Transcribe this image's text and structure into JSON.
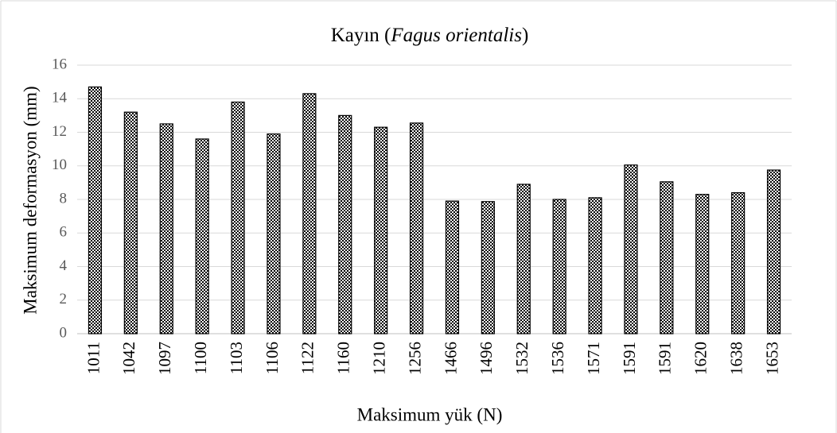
{
  "chart_data": {
    "type": "bar",
    "title": [
      "Kayın (",
      "Fagus orientalis",
      ")"
    ],
    "x_label": "Maksimum yük (N)",
    "y_label": "Maksimum deformasyon (mm)",
    "categories": [
      "1011",
      "1042",
      "1097",
      "1100",
      "1103",
      "1106",
      "1122",
      "1160",
      "1210",
      "1256",
      "1466",
      "1496",
      "1532",
      "1536",
      "1571",
      "1591",
      "1591",
      "1620",
      "1638",
      "1653"
    ],
    "values": [
      14.7,
      13.2,
      12.5,
      11.6,
      13.8,
      11.9,
      14.3,
      13.0,
      12.3,
      12.55,
      7.9,
      7.87,
      8.9,
      8.0,
      8.1,
      10.05,
      9.05,
      8.3,
      8.4,
      9.75
    ],
    "color": "#000000",
    "ylim": [
      0,
      16
    ],
    "yticks": [
      0,
      2,
      4,
      6,
      8,
      10,
      12,
      14,
      16
    ],
    "grid": true
  }
}
